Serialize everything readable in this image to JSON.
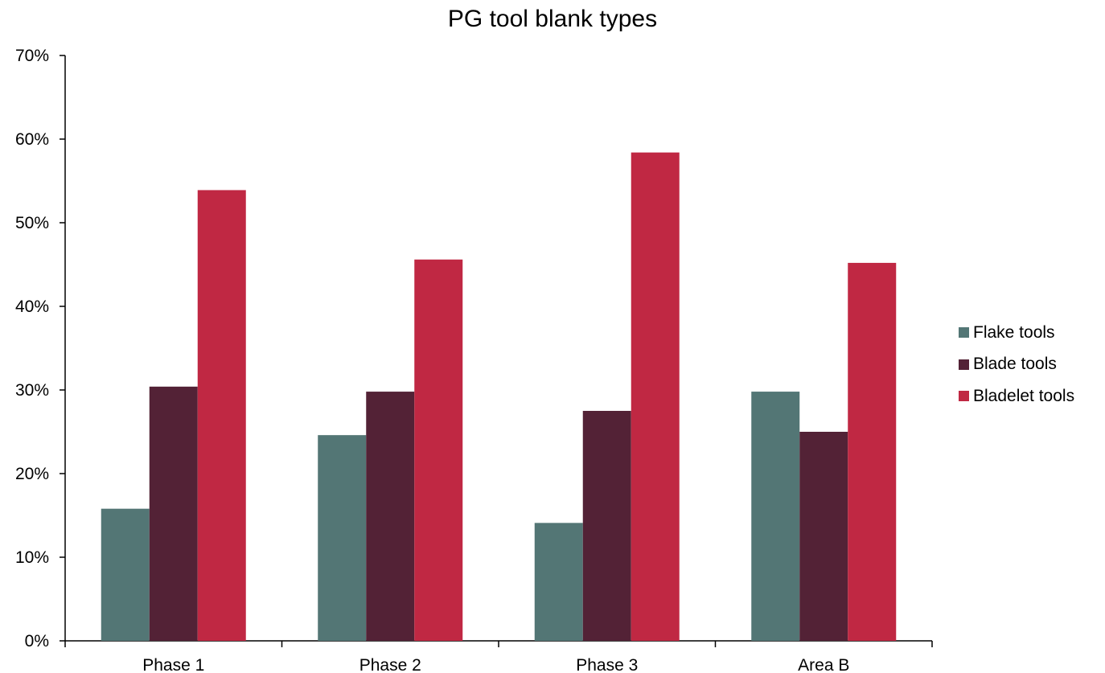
{
  "chart_data": {
    "type": "bar",
    "title": "PG tool blank types",
    "xlabel": "",
    "ylabel": "",
    "categories": [
      "Phase 1",
      "Phase 2",
      "Phase 3",
      "Area B"
    ],
    "series": [
      {
        "name": "Flake tools",
        "color": "#537675",
        "values": [
          15.8,
          24.6,
          14.1,
          29.8
        ]
      },
      {
        "name": "Blade tools",
        "color": "#532236",
        "values": [
          30.4,
          29.8,
          27.5,
          25.0
        ]
      },
      {
        "name": "Bladelet tools",
        "color": "#c02843",
        "values": [
          53.9,
          45.6,
          58.4,
          45.2
        ]
      }
    ],
    "ylim": [
      0,
      70
    ],
    "yticks": [
      0,
      10,
      20,
      30,
      40,
      50,
      60,
      70
    ],
    "ytick_labels": [
      "0%",
      "10%",
      "20%",
      "30%",
      "40%",
      "50%",
      "60%",
      "70%"
    ],
    "grid": false,
    "legend_position": "right"
  }
}
